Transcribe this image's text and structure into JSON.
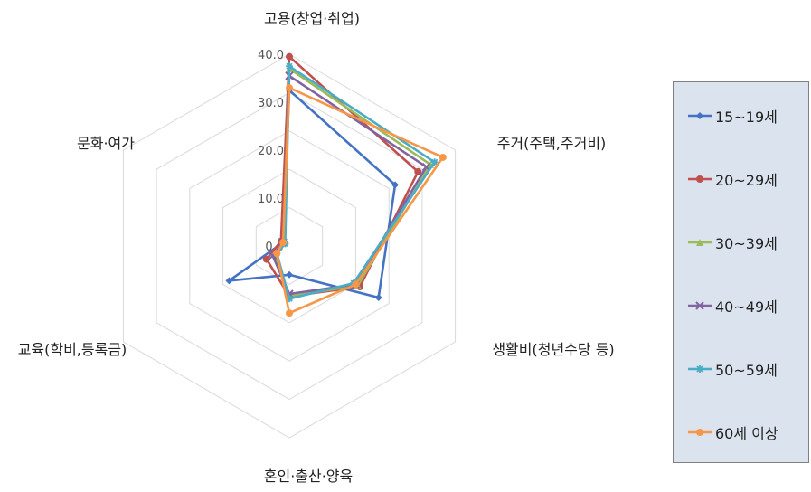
{
  "chart_data": {
    "type": "radar",
    "axes": [
      "고용(창업·취업)",
      "주거(주택,주거비)",
      "생활비(청년수당 등)",
      "혼인·출산·양육",
      "교육(학비,등록금)",
      "문화·여가"
    ],
    "ticks": [
      "0.0",
      "10.0",
      "20.0",
      "30.0",
      "40.0"
    ],
    "rlim": [
      0,
      40
    ],
    "grid": true,
    "legend_position": "right",
    "series": [
      {
        "name": "15~19세",
        "color": "#4472c4",
        "marker": "diamond",
        "values": [
          32.5,
          25.5,
          21.5,
          6.0,
          14.5,
          1.5
        ]
      },
      {
        "name": "20~29세",
        "color": "#c0504d",
        "marker": "circle",
        "values": [
          39.5,
          31.0,
          17.0,
          10.5,
          5.5,
          2.0
        ]
      },
      {
        "name": "30~39세",
        "color": "#9bbb59",
        "marker": "triangle",
        "values": [
          37.0,
          34.0,
          16.5,
          10.5,
          3.5,
          1.5
        ]
      },
      {
        "name": "40~49세",
        "color": "#8064a2",
        "marker": "x",
        "values": [
          35.5,
          33.0,
          16.0,
          10.0,
          4.0,
          1.5
        ]
      },
      {
        "name": "50~59세",
        "color": "#4bacc6",
        "marker": "star",
        "values": [
          37.5,
          35.0,
          15.5,
          11.0,
          3.0,
          1.0
        ]
      },
      {
        "name": "60세 이상",
        "color": "#f79646",
        "marker": "circle",
        "values": [
          33.0,
          37.0,
          16.0,
          14.0,
          3.0,
          1.5
        ]
      }
    ]
  }
}
